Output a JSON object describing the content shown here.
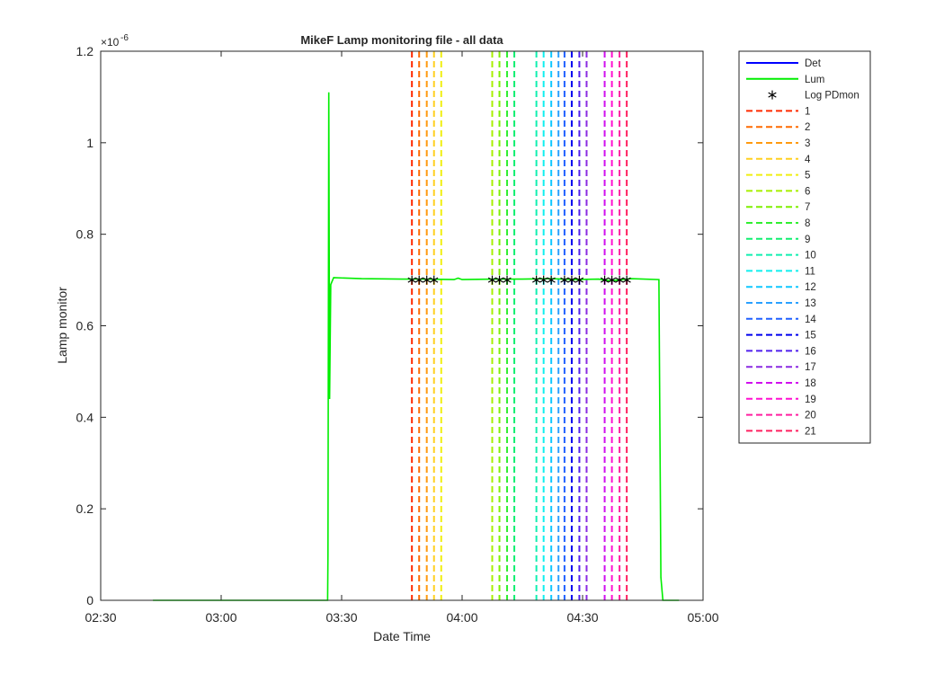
{
  "chart_data": {
    "type": "line",
    "title": "MikeF Lamp monitoring file - all data",
    "xlabel": "Date Time",
    "ylabel": "Lamp monitor",
    "exponent_base": "×10",
    "exponent_power": "-6",
    "xlim_minutes": [
      150,
      300
    ],
    "ylim": [
      0,
      1.2e-06
    ],
    "x_ticks": [
      {
        "minute": 150,
        "label": "02:30"
      },
      {
        "minute": 180,
        "label": "03:00"
      },
      {
        "minute": 210,
        "label": "03:30"
      },
      {
        "minute": 240,
        "label": "04:00"
      },
      {
        "minute": 270,
        "label": "04:30"
      },
      {
        "minute": 300,
        "label": "05:00"
      }
    ],
    "y_ticks": [
      {
        "value": 0,
        "label": "0"
      },
      {
        "value": 2e-07,
        "label": "0.2"
      },
      {
        "value": 4e-07,
        "label": "0.4"
      },
      {
        "value": 6e-07,
        "label": "0.6"
      },
      {
        "value": 8e-07,
        "label": "0.8"
      },
      {
        "value": 1e-06,
        "label": "1"
      },
      {
        "value": 1.2e-06,
        "label": "1.2"
      }
    ],
    "grid": false,
    "legend_position": "outside-right",
    "series": [
      {
        "name": "Det",
        "color": "#0000ff",
        "style": "solid",
        "points": []
      },
      {
        "name": "Lum",
        "color": "#00ee00",
        "style": "solid",
        "points": [
          [
            163,
            0
          ],
          [
            205,
            0
          ],
          [
            206.5,
            0.0
          ],
          [
            206.6,
            1e-07
          ],
          [
            206.8,
            1.11e-06
          ],
          [
            207.0,
            4.4e-07
          ],
          [
            207.3,
            6.9e-07
          ],
          [
            208,
            7.05e-07
          ],
          [
            215,
            7.03e-07
          ],
          [
            225,
            7.02e-07
          ],
          [
            230,
            7.02e-07
          ],
          [
            238,
            7.01e-07
          ],
          [
            239,
            7.04e-07
          ],
          [
            240,
            7.01e-07
          ],
          [
            248,
            7.02e-07
          ],
          [
            255,
            7.02e-07
          ],
          [
            262,
            7.03e-07
          ],
          [
            268,
            7.01e-07
          ],
          [
            274,
            7.02e-07
          ],
          [
            277,
            6.98e-07
          ],
          [
            282,
            7.03e-07
          ],
          [
            289,
            7.01e-07
          ],
          [
            289.5,
            5e-08
          ],
          [
            290,
            0
          ],
          [
            294,
            0
          ]
        ]
      },
      {
        "name": "Log PDmon",
        "color": "#000000",
        "style": "marker",
        "points": [
          [
            227.5,
            7e-07
          ],
          [
            229.3,
            7e-07
          ],
          [
            231.2,
            7e-07
          ],
          [
            233.0,
            7e-07
          ],
          [
            247.5,
            7e-07
          ],
          [
            249.3,
            7e-07
          ],
          [
            251.2,
            7e-07
          ],
          [
            258.5,
            7e-07
          ],
          [
            260.3,
            7e-07
          ],
          [
            262.2,
            7e-07
          ],
          [
            265.5,
            7e-07
          ],
          [
            267.3,
            7e-07
          ],
          [
            269.2,
            7e-07
          ],
          [
            275.5,
            7e-07
          ],
          [
            277.3,
            7e-07
          ],
          [
            279.2,
            7e-07
          ],
          [
            281.0,
            7e-07
          ]
        ]
      }
    ],
    "vertical_markers": [
      {
        "name": "1",
        "minute": 227.5,
        "color": "#ff2a00"
      },
      {
        "name": "2",
        "minute": 229.3,
        "color": "#ff6a00"
      },
      {
        "name": "3",
        "minute": 231.2,
        "color": "#ff9a10"
      },
      {
        "name": "4",
        "minute": 233.0,
        "color": "#ffd020"
      },
      {
        "name": "5",
        "minute": 234.8,
        "color": "#f0ef10"
      },
      {
        "name": "6",
        "minute": 247.5,
        "color": "#a8ef00"
      },
      {
        "name": "7",
        "minute": 249.3,
        "color": "#7fef00"
      },
      {
        "name": "8",
        "minute": 251.2,
        "color": "#30ef30"
      },
      {
        "name": "9",
        "minute": 253.0,
        "color": "#10ef70"
      },
      {
        "name": "10",
        "minute": 258.5,
        "color": "#10efb0"
      },
      {
        "name": "11",
        "minute": 260.3,
        "color": "#10efef"
      },
      {
        "name": "12",
        "minute": 262.2,
        "color": "#10c8ff"
      },
      {
        "name": "13",
        "minute": 264.0,
        "color": "#2aa0ff"
      },
      {
        "name": "14",
        "minute": 265.5,
        "color": "#2060ff"
      },
      {
        "name": "15",
        "minute": 267.3,
        "color": "#0000ee"
      },
      {
        "name": "16",
        "minute": 269.2,
        "color": "#5020ee"
      },
      {
        "name": "17",
        "minute": 271.0,
        "color": "#8a2be2"
      },
      {
        "name": "18",
        "minute": 275.5,
        "color": "#d010ee"
      },
      {
        "name": "19",
        "minute": 277.3,
        "color": "#ff10d0"
      },
      {
        "name": "20",
        "minute": 279.2,
        "color": "#ff20a0"
      },
      {
        "name": "21",
        "minute": 281.0,
        "color": "#ff2060"
      }
    ]
  }
}
